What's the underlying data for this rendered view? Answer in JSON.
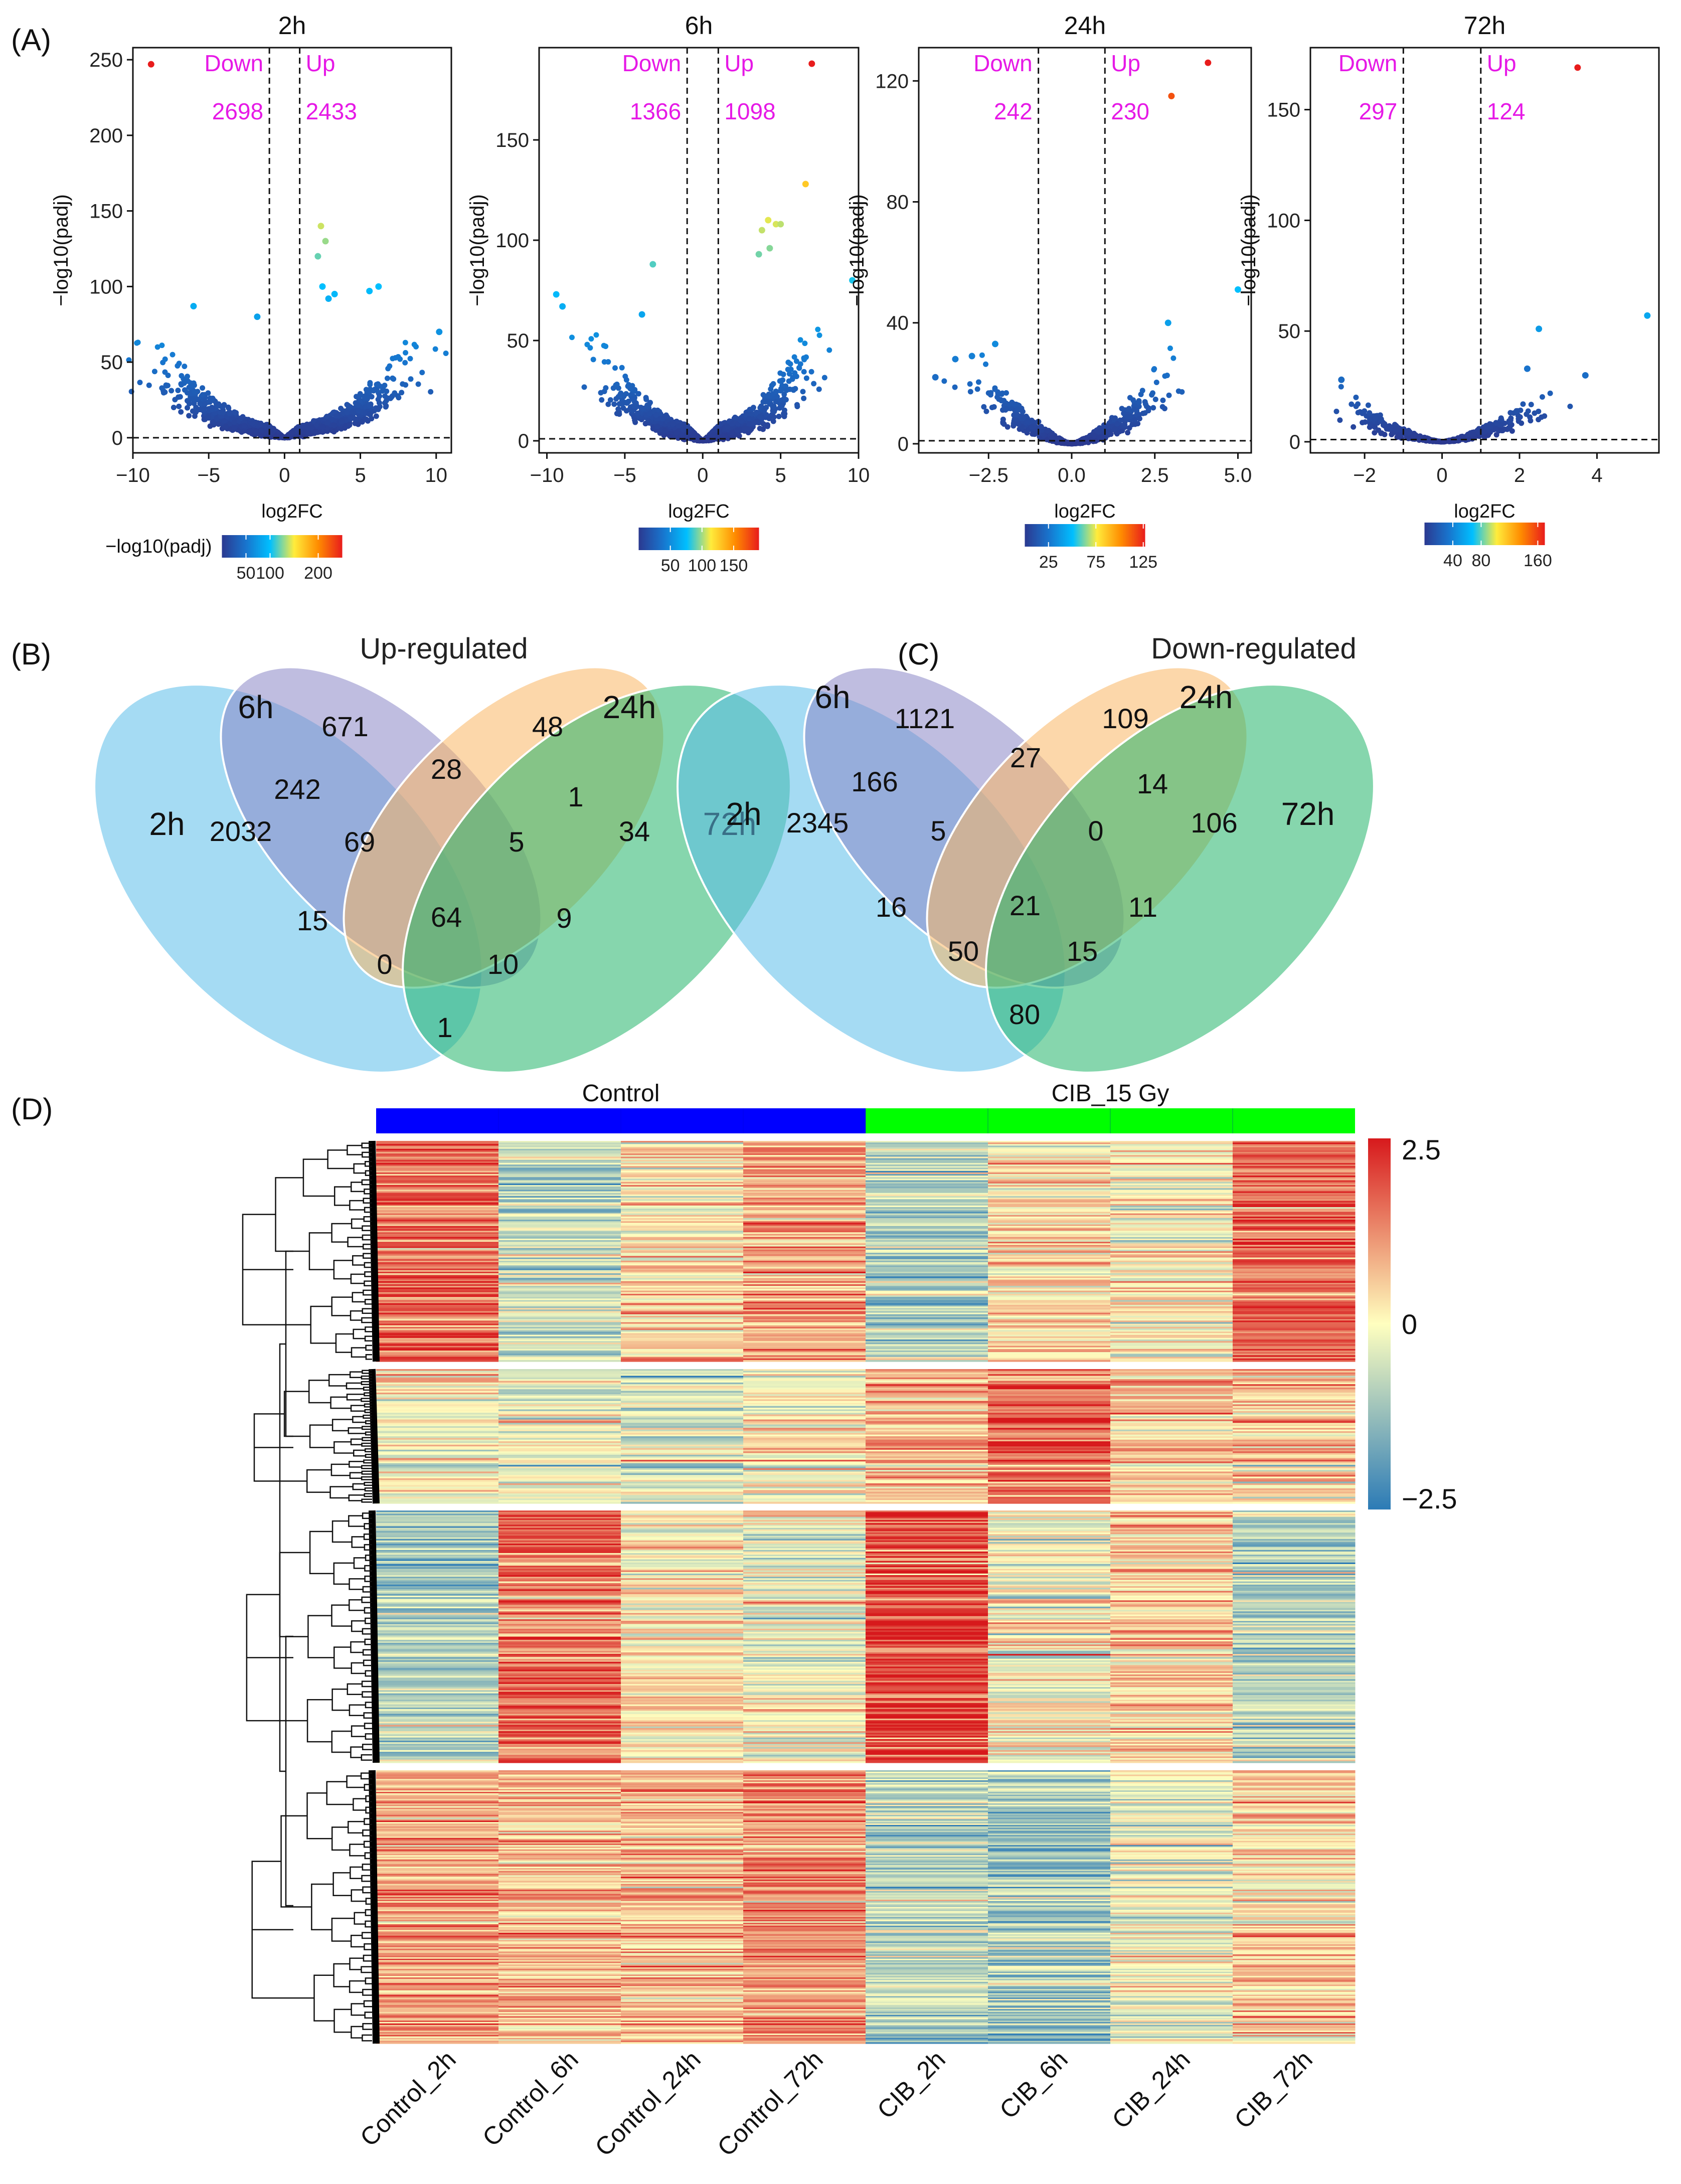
{
  "panel_labels": {
    "A": "(A)",
    "B": "(B)",
    "C": "(C)",
    "D": "(D)"
  },
  "colors": {
    "annotation": "#e619e6",
    "venn_2h": "#5bbde9",
    "venn_6h": "#8b87c6",
    "venn_24h": "#f9b765",
    "venn_72h": "#23b56a",
    "heat_low": "#2c7bb6",
    "heat_mid": "#ffffbf",
    "heat_high": "#d7191c",
    "control_bar": "#0000ff",
    "cib_bar": "#00ff00"
  },
  "chart_data": [
    {
      "type": "scatter",
      "panel": "A",
      "title": "2h",
      "xlabel": "log2FC",
      "ylabel": "−log10(padj)",
      "xlim": [
        -10,
        11
      ],
      "ylim": [
        -10,
        258
      ],
      "xticks": [
        -10,
        -5,
        0,
        5,
        10
      ],
      "xtick_labels": [
        "−10",
        "−5",
        "0",
        "5",
        "10"
      ],
      "yticks": [
        0,
        50,
        100,
        150,
        200,
        250
      ],
      "ytick_labels": [
        "0",
        "50",
        "100",
        "150",
        "200",
        "250"
      ],
      "thresholds": {
        "log2fc": [
          -1,
          1
        ],
        "padj_line": 0
      },
      "annotations": {
        "down_label": "Down",
        "up_label": "Up",
        "down_count": "2698",
        "up_count": "2433"
      },
      "colorbar": {
        "title": "−log10(padj)",
        "range": [
          0,
          250
        ],
        "ticks": [
          50,
          100,
          200
        ],
        "tick_labels": [
          "50",
          "100",
          "200"
        ]
      },
      "highlight_points": [
        {
          "x": -8.8,
          "y": 247,
          "color": 250
        },
        {
          "x": 2.4,
          "y": 140,
          "color": 140
        },
        {
          "x": 2.7,
          "y": 130,
          "color": 130
        },
        {
          "x": 2.2,
          "y": 120,
          "color": 120
        },
        {
          "x": 2.5,
          "y": 100,
          "color": 100
        },
        {
          "x": 3.3,
          "y": 95,
          "color": 95
        },
        {
          "x": 5.6,
          "y": 97,
          "color": 97
        },
        {
          "x": 6.2,
          "y": 100,
          "color": 100
        },
        {
          "x": 2.9,
          "y": 92,
          "color": 90
        },
        {
          "x": -6.0,
          "y": 87,
          "color": 87
        },
        {
          "x": -1.8,
          "y": 80,
          "color": 80
        },
        {
          "x": 10.2,
          "y": 70,
          "color": 70
        }
      ],
      "bulk": {
        "n": 1300,
        "xspread": 9.5,
        "ymax": 65
      }
    },
    {
      "type": "scatter",
      "panel": "A",
      "title": "6h",
      "xlabel": "log2FC",
      "ylabel": "−log10(padj)",
      "xlim": [
        -10.5,
        10
      ],
      "ylim": [
        -6,
        196
      ],
      "xticks": [
        -10,
        -5,
        0,
        5,
        10
      ],
      "xtick_labels": [
        "−10",
        "−5",
        "0",
        "5",
        "10"
      ],
      "yticks": [
        0,
        50,
        100,
        150
      ],
      "ytick_labels": [
        "0",
        "50",
        "100",
        "150"
      ],
      "thresholds": {
        "log2fc": [
          -1,
          1
        ],
        "padj_line": 1
      },
      "annotations": {
        "down_label": "Down",
        "up_label": "Up",
        "down_count": "1366",
        "up_count": "1098"
      },
      "colorbar": {
        "title": "",
        "range": [
          0,
          190
        ],
        "ticks": [
          50,
          100,
          150
        ],
        "tick_labels": [
          "50",
          "100",
          "150"
        ]
      },
      "highlight_points": [
        {
          "x": 7.0,
          "y": 188,
          "color": 190
        },
        {
          "x": 6.6,
          "y": 128,
          "color": 128
        },
        {
          "x": 4.2,
          "y": 110,
          "color": 110
        },
        {
          "x": 4.7,
          "y": 108,
          "color": 108
        },
        {
          "x": 3.8,
          "y": 105,
          "color": 105
        },
        {
          "x": 5.0,
          "y": 108,
          "color": 104
        },
        {
          "x": 4.3,
          "y": 96,
          "color": 96
        },
        {
          "x": 3.6,
          "y": 93,
          "color": 93
        },
        {
          "x": -3.2,
          "y": 88,
          "color": 88
        },
        {
          "x": 9.6,
          "y": 80,
          "color": 80
        },
        {
          "x": -9.4,
          "y": 73,
          "color": 73
        },
        {
          "x": -9.0,
          "y": 67,
          "color": 67
        },
        {
          "x": -3.9,
          "y": 63,
          "color": 63
        }
      ],
      "bulk": {
        "n": 1100,
        "xspread": 8,
        "ymax": 58
      }
    },
    {
      "type": "scatter",
      "panel": "A",
      "title": "24h",
      "xlabel": "log2FC",
      "ylabel": "−log10(padj)",
      "xlim": [
        -4.6,
        5.4
      ],
      "ylim": [
        -3,
        131
      ],
      "xticks": [
        -2.5,
        0,
        2.5,
        5
      ],
      "xtick_labels": [
        "−2.5",
        "0.0",
        "2.5",
        "5.0"
      ],
      "yticks": [
        0,
        40,
        80,
        120
      ],
      "ytick_labels": [
        "0",
        "40",
        "80",
        "120"
      ],
      "thresholds": {
        "log2fc": [
          -1,
          1
        ],
        "padj_line": 1
      },
      "annotations": {
        "down_label": "Down",
        "up_label": "Up",
        "down_count": "242",
        "up_count": "230"
      },
      "colorbar": {
        "title": "",
        "range": [
          0,
          127
        ],
        "ticks": [
          25,
          75,
          125
        ],
        "tick_labels": [
          "25",
          "75",
          "125"
        ]
      },
      "highlight_points": [
        {
          "x": 4.1,
          "y": 126,
          "color": 127
        },
        {
          "x": 3.0,
          "y": 115,
          "color": 115
        },
        {
          "x": 5.0,
          "y": 51,
          "color": 51
        },
        {
          "x": 2.9,
          "y": 40,
          "color": 40
        },
        {
          "x": -2.3,
          "y": 33,
          "color": 33
        },
        {
          "x": -3.0,
          "y": 29,
          "color": 29
        },
        {
          "x": -4.1,
          "y": 22,
          "color": 22
        },
        {
          "x": -3.5,
          "y": 28,
          "color": 28
        }
      ],
      "bulk": {
        "n": 600,
        "xspread": 3.3,
        "ymax": 32
      }
    },
    {
      "type": "scatter",
      "panel": "A",
      "title": "72h",
      "xlabel": "log2FC",
      "ylabel": "−log10(padj)",
      "xlim": [
        -3.4,
        5.6
      ],
      "ylim": [
        -5,
        178
      ],
      "xticks": [
        -2,
        0,
        2,
        4
      ],
      "xtick_labels": [
        "−2",
        "0",
        "2",
        "4"
      ],
      "yticks": [
        0,
        50,
        100,
        150
      ],
      "ytick_labels": [
        "0",
        "50",
        "100",
        "150"
      ],
      "thresholds": {
        "log2fc": [
          -1,
          1
        ],
        "padj_line": 1
      },
      "annotations": {
        "down_label": "Down",
        "up_label": "Up",
        "down_count": "297",
        "up_count": "124"
      },
      "colorbar": {
        "title": "",
        "range": [
          0,
          170
        ],
        "ticks": [
          40,
          80,
          160
        ],
        "tick_labels": [
          "40",
          "80",
          "160"
        ]
      },
      "highlight_points": [
        {
          "x": 3.5,
          "y": 169,
          "color": 170
        },
        {
          "x": 5.3,
          "y": 57,
          "color": 57
        },
        {
          "x": 2.5,
          "y": 51,
          "color": 51
        },
        {
          "x": 3.7,
          "y": 30,
          "color": 30
        },
        {
          "x": -2.6,
          "y": 28,
          "color": 28
        },
        {
          "x": 2.2,
          "y": 33,
          "color": 33
        }
      ],
      "bulk": {
        "n": 500,
        "xspread": 2.9,
        "ymax": 25
      }
    }
  ],
  "venn_up": {
    "title": "Up-regulated",
    "sets": [
      "2h",
      "6h",
      "24h",
      "72h"
    ],
    "regions": {
      "only_6h": "671",
      "only_24h": "48",
      "only_2h": "2032",
      "only_72h": "34",
      "6h_24h": "28",
      "2h_6h": "242",
      "24h_72h": "1",
      "2h_6h_24h": "69",
      "6h_24h_72h": "5",
      "2h_24h": "15",
      "all": "64",
      "6h_72h": "9",
      "2h_24h_72h": "0",
      "2h_6h_72h": "10",
      "2h_72h": "1"
    }
  },
  "venn_down": {
    "title": "Down-regulated",
    "sets": [
      "2h",
      "6h",
      "24h",
      "72h"
    ],
    "regions": {
      "only_6h": "1121",
      "only_24h": "109",
      "only_2h": "2345",
      "only_72h": "106",
      "6h_24h": "27",
      "2h_6h": "166",
      "24h_72h": "14",
      "2h_6h_24h": "5",
      "6h_24h_72h": "0",
      "2h_24h": "16",
      "all": "21",
      "6h_72h": "11",
      "2h_24h_72h": "50",
      "2h_6h_72h": "15",
      "2h_72h": "80"
    }
  },
  "heatmap": {
    "groups": [
      {
        "label": "Control",
        "span": [
          0,
          4
        ]
      },
      {
        "label": "CIB_15 Gy",
        "span": [
          4,
          8
        ]
      }
    ],
    "columns": [
      "Control_2h",
      "Control_6h",
      "Control_24h",
      "Control_72h",
      "CIB_2h",
      "CIB_6h",
      "CIB_24h",
      "CIB_72h"
    ],
    "legend": {
      "range": [
        -2.5,
        2.5
      ],
      "ticks": [
        2.5,
        0,
        -2.5
      ],
      "tick_labels": [
        "2.5",
        "0",
        "−2.5"
      ]
    },
    "clusters": [
      {
        "rows": 140,
        "means": [
          1.5,
          -0.7,
          0.4,
          0.9,
          -0.9,
          0.3,
          0.1,
          1.6
        ]
      },
      {
        "rows": 80,
        "means": [
          0.0,
          -0.3,
          -0.4,
          0.1,
          0.8,
          1.7,
          0.6,
          0.5
        ]
      },
      {
        "rows": 160,
        "means": [
          -0.8,
          1.6,
          0.3,
          -0.1,
          2.0,
          0.0,
          0.6,
          -0.7
        ]
      },
      {
        "rows": 190,
        "means": [
          0.9,
          0.6,
          0.7,
          1.2,
          -0.9,
          -1.1,
          -0.3,
          0.4
        ]
      }
    ]
  }
}
